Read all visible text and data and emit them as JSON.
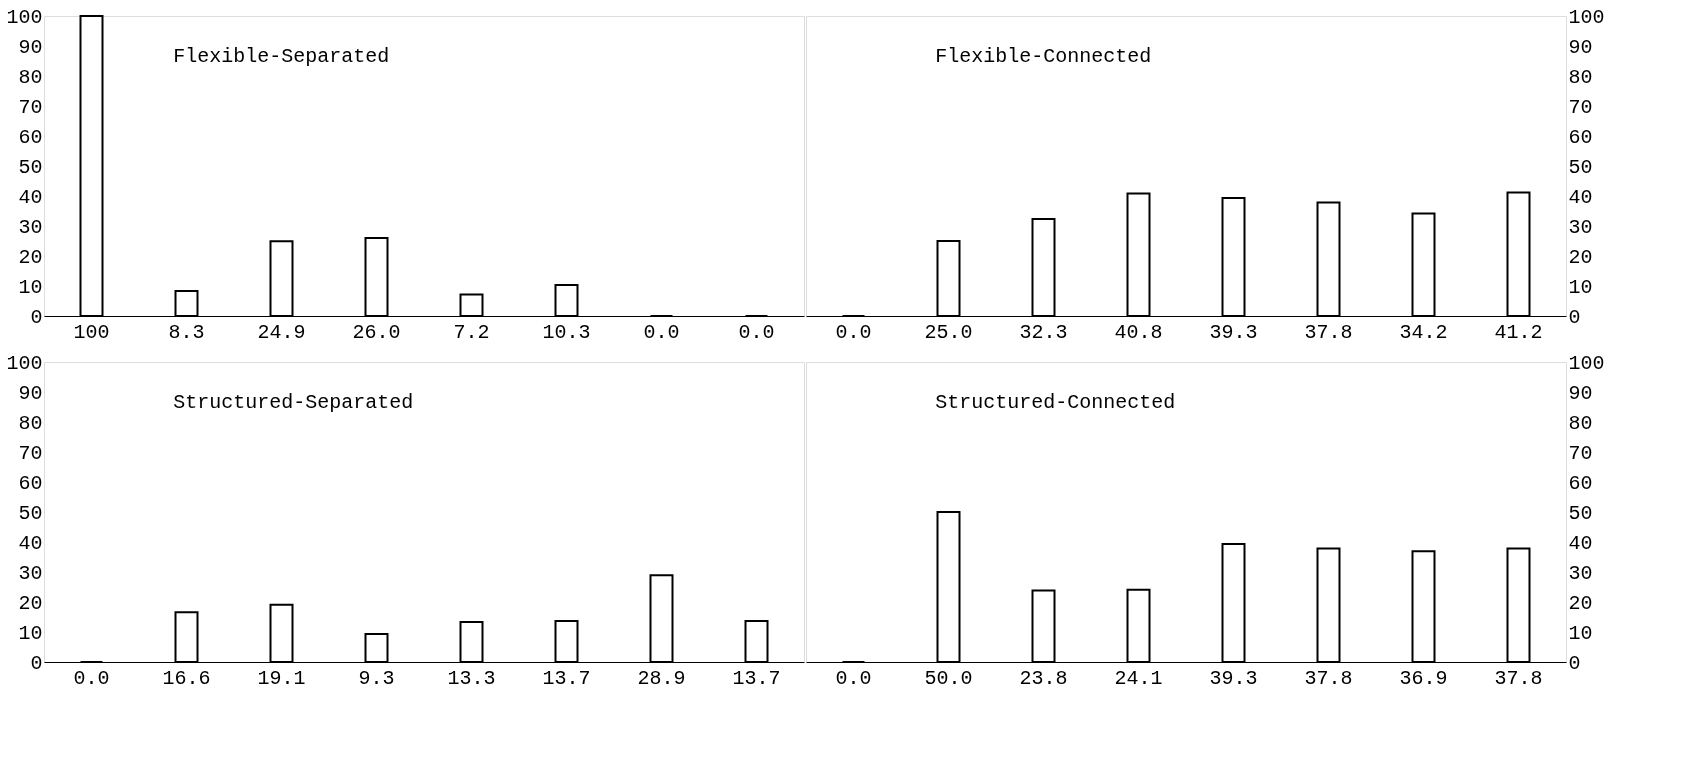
{
  "chart_data": [
    {
      "type": "bar",
      "title": "Flexible-Separated",
      "categories": [
        null,
        null,
        null,
        null,
        null,
        null,
        null,
        null
      ],
      "values": [
        100,
        8.3,
        24.9,
        26.0,
        7.2,
        10.3,
        0.0,
        0.0
      ],
      "value_labels": [
        "100",
        "8.3",
        "24.9",
        "26.0",
        "7.2",
        "10.3",
        "0.0",
        "0.0"
      ],
      "color": "#000000",
      "ylim": [
        0,
        100
      ],
      "yticks": [
        0,
        10,
        20,
        30,
        40,
        50,
        60,
        70,
        80,
        90,
        100
      ],
      "tick_labels": "y"
    },
    {
      "type": "bar",
      "title": "Flexible-Connected",
      "categories": [
        null,
        null,
        null,
        null,
        null,
        null,
        null,
        null
      ],
      "values": [
        0.0,
        25.0,
        32.3,
        40.8,
        39.3,
        37.8,
        34.2,
        41.2
      ],
      "value_labels": [
        "0.0",
        "25.0",
        "32.3",
        "40.8",
        "39.3",
        "37.8",
        "34.2",
        "41.2"
      ],
      "color": "#000000",
      "ylim": [
        0,
        100
      ],
      "yticks": [
        0,
        10,
        20,
        30,
        40,
        50,
        60,
        70,
        80,
        90,
        100
      ],
      "tick_labels": "y"
    },
    {
      "type": "bar",
      "title": "Structured-Separated",
      "categories": [
        null,
        null,
        null,
        null,
        null,
        null,
        null,
        null
      ],
      "values": [
        0.0,
        16.6,
        19.1,
        9.3,
        13.3,
        13.7,
        28.9,
        13.7
      ],
      "value_labels": [
        "0.0",
        "16.6",
        "19.1",
        "9.3",
        "13.3",
        "13.7",
        "28.9",
        "13.7"
      ],
      "color": "#000000",
      "ylim": [
        0,
        100
      ],
      "yticks": [
        0,
        10,
        20,
        30,
        40,
        50,
        60,
        70,
        80,
        90,
        100
      ],
      "tick_labels": "y"
    },
    {
      "type": "bar",
      "title": "Structured-Connected",
      "categories": [
        null,
        null,
        null,
        null,
        null,
        null,
        null,
        null
      ],
      "values": [
        0.0,
        50.0,
        23.8,
        24.1,
        39.3,
        37.8,
        36.9,
        37.8
      ],
      "value_labels": [
        "0.0",
        "50.0",
        "23.8",
        "24.1",
        "39.3",
        "37.8",
        "36.9",
        "37.8"
      ],
      "color": "#000000",
      "ylim": [
        0,
        100
      ],
      "yticks": [
        0,
        10,
        20,
        30,
        40,
        50,
        60,
        70,
        80,
        90,
        100
      ],
      "tick_labels": "y"
    }
  ]
}
